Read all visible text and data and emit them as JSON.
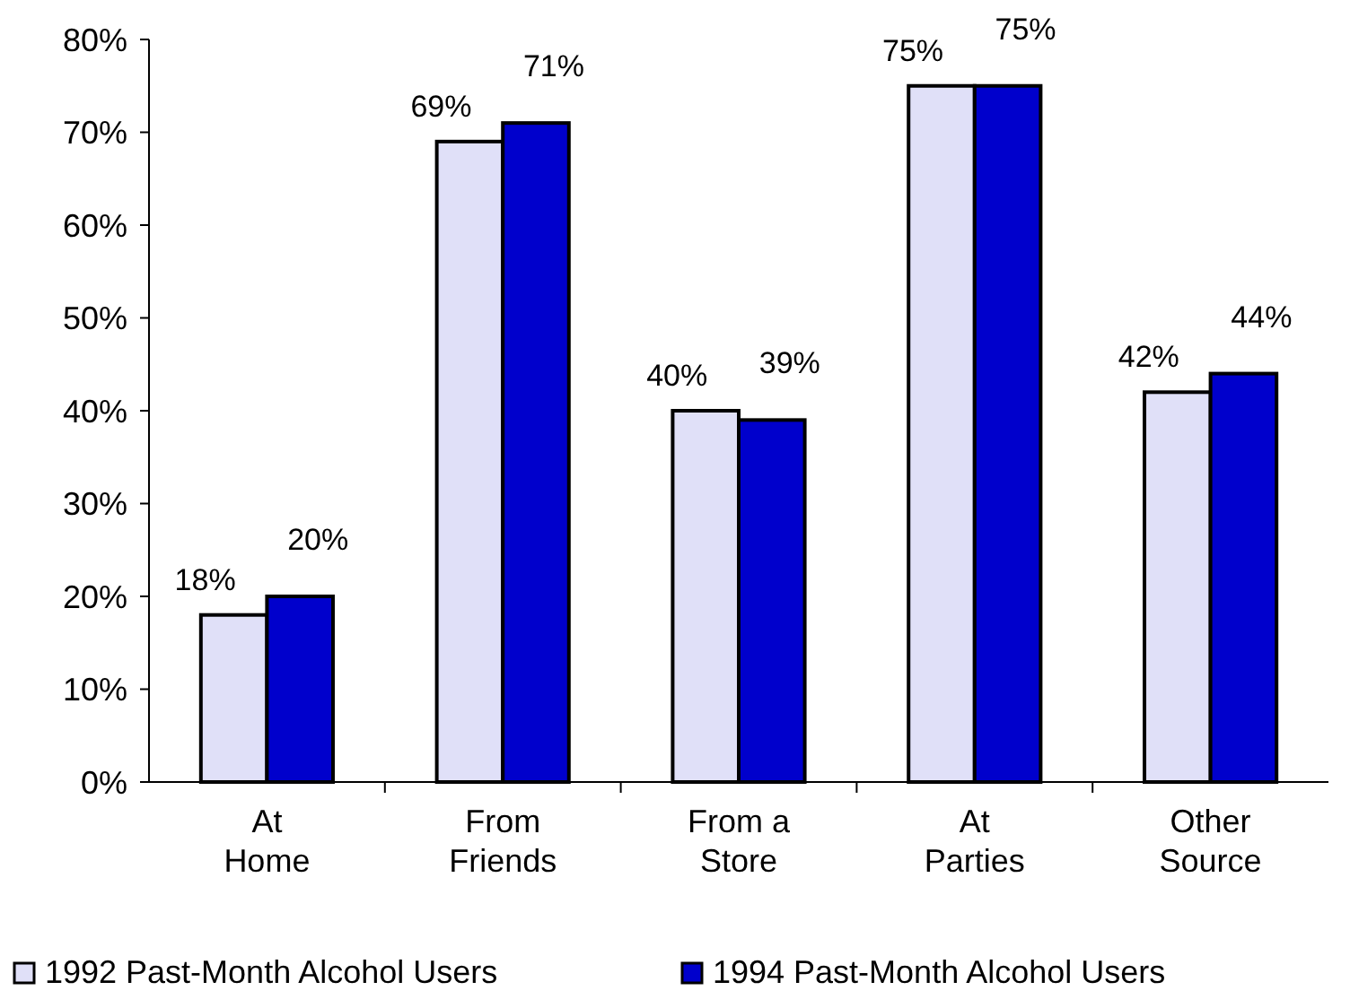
{
  "chart_data": {
    "type": "bar",
    "categories": [
      "At Home",
      "From Friends",
      "From a Store",
      "At Parties",
      "Other Source"
    ],
    "series": [
      {
        "name": "1992 Past-Month Alcohol Users",
        "color": "#e0e0f8",
        "values": [
          18,
          69,
          40,
          75,
          42
        ],
        "value_labels": [
          "18%",
          "69%",
          "40%",
          "75%",
          "42%"
        ]
      },
      {
        "name": "1994 Past-Month Alcohol Users",
        "color": "#0000cc",
        "values": [
          20,
          71,
          39,
          75,
          44
        ],
        "value_labels": [
          "20%",
          "71%",
          "39%",
          "75%",
          "44%"
        ]
      }
    ],
    "ylim": [
      0,
      80
    ],
    "yticks": [
      {
        "value": 0,
        "label": "0%"
      },
      {
        "value": 10,
        "label": "10%"
      },
      {
        "value": 20,
        "label": "20%"
      },
      {
        "value": 30,
        "label": "30%"
      },
      {
        "value": 40,
        "label": "40%"
      },
      {
        "value": 50,
        "label": "50%"
      },
      {
        "value": 60,
        "label": "60%"
      },
      {
        "value": 70,
        "label": "70%"
      },
      {
        "value": 80,
        "label": "80%"
      }
    ],
    "grid": false,
    "legend": "bottom"
  }
}
